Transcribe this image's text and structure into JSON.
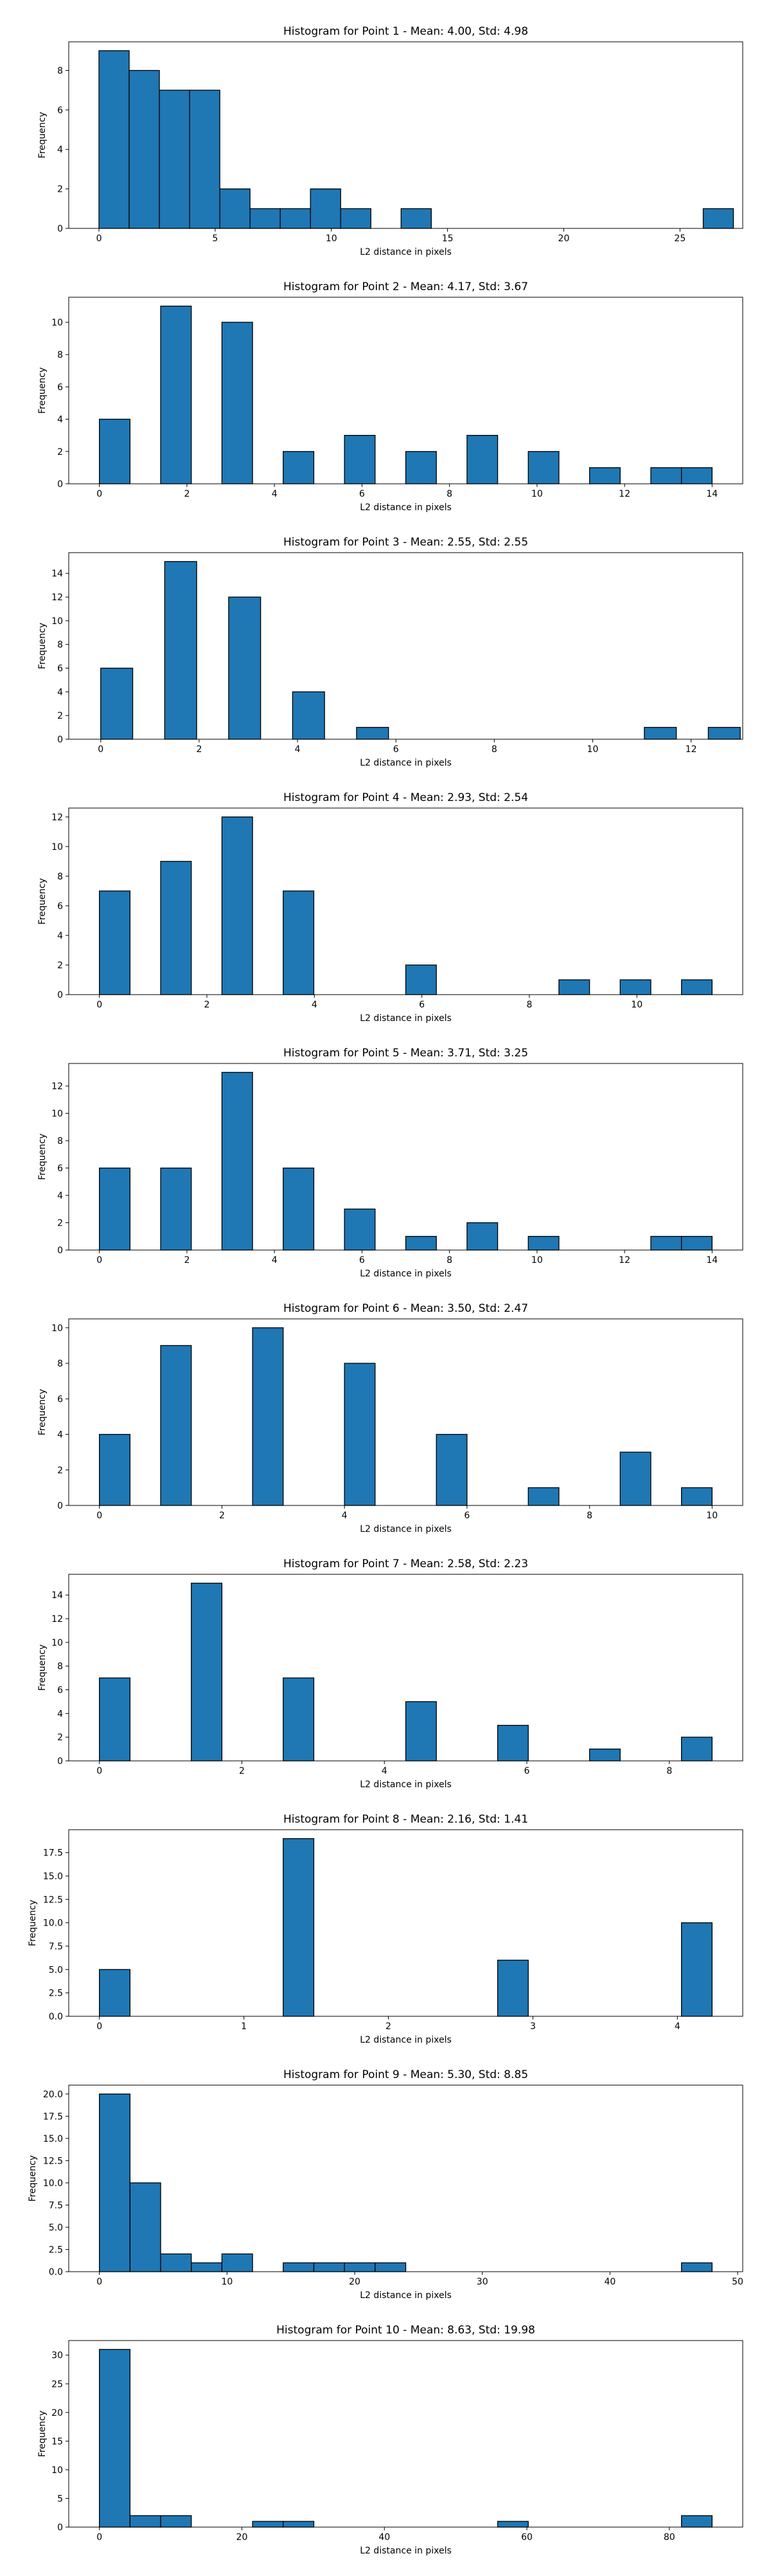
{
  "figure": {
    "ylabel": "Frequency",
    "xlabel": "L2 distance in pixels"
  },
  "chart_data": [
    {
      "type": "bar",
      "title": "Histogram for Point 1 - Mean: 4.00, Std: 4.98",
      "xlabel": "L2 distance in pixels",
      "ylabel": "Frequency",
      "xlim": [
        -1.3,
        27.7
      ],
      "ylim": [
        0,
        9.45
      ],
      "xticks": [
        0,
        5,
        10,
        15,
        20,
        25
      ],
      "yticks": [
        0,
        2,
        4,
        6,
        8
      ],
      "bin_edges": [
        0,
        1.3,
        2.6,
        3.9,
        5.2,
        6.5,
        7.8,
        9.1,
        10.4,
        11.7,
        13.0,
        14.3,
        15.6,
        16.9,
        18.2,
        19.5,
        20.8,
        22.1,
        23.4,
        24.7,
        26.0,
        27.3
      ],
      "values": [
        9,
        8,
        7,
        7,
        2,
        1,
        1,
        2,
        1,
        0,
        1,
        0,
        0,
        0,
        0,
        0,
        0,
        0,
        0,
        0,
        1
      ],
      "grid": false,
      "bar_color": "#1f77b4"
    },
    {
      "type": "bar",
      "title": "Histogram for Point 2 - Mean: 4.17, Std: 3.67",
      "xlabel": "L2 distance in pixels",
      "ylabel": "Frequency",
      "xlim": [
        -0.7,
        14.7
      ],
      "ylim": [
        0,
        11.55
      ],
      "xticks": [
        0,
        2,
        4,
        6,
        8,
        10,
        12,
        14
      ],
      "yticks": [
        0,
        2,
        4,
        6,
        8,
        10
      ],
      "bin_edges": [
        0,
        0.7,
        1.4,
        2.1,
        2.8,
        3.5,
        4.2,
        4.9,
        5.6,
        6.3,
        7.0,
        7.7,
        8.4,
        9.1,
        9.8,
        10.5,
        11.2,
        11.9,
        12.6,
        13.3,
        14.0
      ],
      "values": [
        4,
        0,
        11,
        0,
        10,
        0,
        2,
        0,
        3,
        0,
        2,
        0,
        3,
        0,
        2,
        0,
        1,
        0,
        1,
        1
      ],
      "grid": false,
      "bar_color": "#1f77b4"
    },
    {
      "type": "bar",
      "title": "Histogram for Point 3 - Mean: 2.55, Std: 2.55",
      "xlabel": "L2 distance in pixels",
      "ylabel": "Frequency",
      "xlim": [
        -0.65,
        13.05
      ],
      "ylim": [
        0,
        15.75
      ],
      "xticks": [
        0,
        2,
        4,
        6,
        8,
        10,
        12
      ],
      "yticks": [
        0,
        2,
        4,
        6,
        8,
        10,
        12,
        14
      ],
      "bin_edges": [
        0,
        0.65,
        1.3,
        1.95,
        2.6,
        3.25,
        3.9,
        4.55,
        5.2,
        5.85,
        6.5,
        7.15,
        7.8,
        8.45,
        9.1,
        9.75,
        10.4,
        11.05,
        11.7,
        12.35,
        13.0
      ],
      "values": [
        6,
        0,
        15,
        0,
        12,
        0,
        4,
        0,
        1,
        0,
        0,
        0,
        0,
        0,
        0,
        0,
        0,
        1,
        0,
        1
      ],
      "grid": false,
      "bar_color": "#1f77b4"
    },
    {
      "type": "bar",
      "title": "Histogram for Point 4 - Mean: 2.93, Std: 2.54",
      "xlabel": "L2 distance in pixels",
      "ylabel": "Frequency",
      "xlim": [
        -0.57,
        11.97
      ],
      "ylim": [
        0,
        12.6
      ],
      "xticks": [
        0,
        2,
        4,
        6,
        8,
        10
      ],
      "yticks": [
        0,
        2,
        4,
        6,
        8,
        10,
        12
      ],
      "bin_edges": [
        0,
        0.57,
        1.14,
        1.71,
        2.28,
        2.85,
        3.42,
        3.99,
        4.56,
        5.13,
        5.7,
        6.27,
        6.84,
        7.41,
        7.98,
        8.55,
        9.12,
        9.69,
        10.26,
        10.83,
        11.4
      ],
      "values": [
        7,
        0,
        9,
        0,
        12,
        0,
        7,
        0,
        0,
        0,
        2,
        0,
        0,
        0,
        0,
        1,
        0,
        1,
        0,
        1
      ],
      "grid": false,
      "bar_color": "#1f77b4"
    },
    {
      "type": "bar",
      "title": "Histogram for Point 5 - Mean: 3.71, Std: 3.25",
      "xlabel": "L2 distance in pixels",
      "ylabel": "Frequency",
      "xlim": [
        -0.7,
        14.7
      ],
      "ylim": [
        0,
        13.65
      ],
      "xticks": [
        0,
        2,
        4,
        6,
        8,
        10,
        12,
        14
      ],
      "yticks": [
        0,
        2,
        4,
        6,
        8,
        10,
        12
      ],
      "bin_edges": [
        0,
        0.7,
        1.4,
        2.1,
        2.8,
        3.5,
        4.2,
        4.9,
        5.6,
        6.3,
        7.0,
        7.7,
        8.4,
        9.1,
        9.8,
        10.5,
        11.2,
        11.9,
        12.6,
        13.3,
        14.0
      ],
      "values": [
        6,
        0,
        6,
        0,
        13,
        0,
        6,
        0,
        3,
        0,
        1,
        0,
        2,
        0,
        1,
        0,
        0,
        0,
        1,
        1
      ],
      "grid": false,
      "bar_color": "#1f77b4"
    },
    {
      "type": "bar",
      "title": "Histogram for Point 6 - Mean: 3.50, Std: 2.47",
      "xlabel": "L2 distance in pixels",
      "ylabel": "Frequency",
      "xlim": [
        -0.5,
        10.5
      ],
      "ylim": [
        0,
        10.5
      ],
      "xticks": [
        0,
        2,
        4,
        6,
        8,
        10
      ],
      "yticks": [
        0,
        2,
        4,
        6,
        8,
        10
      ],
      "bin_edges": [
        0,
        0.5,
        1.0,
        1.5,
        2.0,
        2.5,
        3.0,
        3.5,
        4.0,
        4.5,
        5.0,
        5.5,
        6.0,
        6.5,
        7.0,
        7.5,
        8.0,
        8.5,
        9.0,
        9.5,
        10.0
      ],
      "values": [
        4,
        0,
        9,
        0,
        0,
        10,
        0,
        0,
        8,
        0,
        0,
        4,
        0,
        0,
        1,
        0,
        0,
        3,
        0,
        1
      ],
      "grid": false,
      "bar_color": "#1f77b4"
    },
    {
      "type": "bar",
      "title": "Histogram for Point 7 - Mean: 2.58, Std: 2.23",
      "xlabel": "L2 distance in pixels",
      "ylabel": "Frequency",
      "xlim": [
        -0.43,
        9.03
      ],
      "ylim": [
        0,
        15.75
      ],
      "xticks": [
        0,
        2,
        4,
        6,
        8
      ],
      "yticks": [
        0,
        2,
        4,
        6,
        8,
        10,
        12,
        14
      ],
      "bin_edges": [
        0,
        0.43,
        0.86,
        1.29,
        1.72,
        2.15,
        2.58,
        3.01,
        3.44,
        3.87,
        4.3,
        4.73,
        5.16,
        5.59,
        6.02,
        6.45,
        6.88,
        7.31,
        7.74,
        8.17,
        8.6
      ],
      "values": [
        7,
        0,
        0,
        15,
        0,
        0,
        7,
        0,
        0,
        0,
        5,
        0,
        0,
        3,
        0,
        0,
        1,
        0,
        0,
        2
      ],
      "grid": false,
      "bar_color": "#1f77b4"
    },
    {
      "type": "bar",
      "title": "Histogram for Point 8 - Mean: 2.16, Std: 1.41",
      "xlabel": "L2 distance in pixels",
      "ylabel": "Frequency",
      "xlim": [
        -0.212,
        4.452
      ],
      "ylim": [
        0,
        19.95
      ],
      "xticks": [
        0,
        1,
        2,
        3,
        4
      ],
      "yticks": [
        0.0,
        2.5,
        5.0,
        7.5,
        10.0,
        12.5,
        15.0,
        17.5
      ],
      "ytick_labels": [
        "0.0",
        "2.5",
        "5.0",
        "7.5",
        "10.0",
        "12.5",
        "15.0",
        "17.5"
      ],
      "bin_edges": [
        0,
        0.212,
        0.424,
        0.636,
        0.848,
        1.06,
        1.272,
        1.484,
        1.696,
        1.908,
        2.12,
        2.332,
        2.544,
        2.756,
        2.968,
        3.18,
        3.392,
        3.604,
        3.816,
        4.028,
        4.24
      ],
      "values": [
        5,
        0,
        0,
        0,
        0,
        0,
        19,
        0,
        0,
        0,
        0,
        0,
        0,
        6,
        0,
        0,
        0,
        0,
        0,
        10
      ],
      "grid": false,
      "bar_color": "#1f77b4"
    },
    {
      "type": "bar",
      "title": "Histogram for Point 9 - Mean: 5.30, Std: 8.85",
      "xlabel": "L2 distance in pixels",
      "ylabel": "Frequency",
      "xlim": [
        -2.4,
        50.4
      ],
      "ylim": [
        0,
        21.0
      ],
      "xticks": [
        0,
        10,
        20,
        30,
        40,
        50
      ],
      "yticks": [
        0.0,
        2.5,
        5.0,
        7.5,
        10.0,
        12.5,
        15.0,
        17.5,
        20.0
      ],
      "ytick_labels": [
        "0.0",
        "2.5",
        "5.0",
        "7.5",
        "10.0",
        "12.5",
        "15.0",
        "17.5",
        "20.0"
      ],
      "bin_edges": [
        0,
        2.4,
        4.8,
        7.2,
        9.6,
        12.0,
        14.4,
        16.8,
        19.2,
        21.6,
        24.0,
        26.4,
        28.8,
        31.2,
        33.6,
        36.0,
        38.4,
        40.8,
        43.2,
        45.6,
        48.0
      ],
      "values": [
        20,
        10,
        2,
        1,
        2,
        0,
        1,
        1,
        1,
        1,
        0,
        0,
        0,
        0,
        0,
        0,
        0,
        0,
        0,
        1
      ],
      "grid": false,
      "bar_color": "#1f77b4"
    },
    {
      "type": "bar",
      "title": "Histogram for Point 10 - Mean: 8.63, Std: 19.98",
      "xlabel": "L2 distance in pixels",
      "ylabel": "Frequency",
      "xlim": [
        -4.3,
        90.3
      ],
      "ylim": [
        0,
        32.55
      ],
      "xticks": [
        0,
        20,
        40,
        60,
        80
      ],
      "yticks": [
        0,
        5,
        10,
        15,
        20,
        25,
        30
      ],
      "bin_edges": [
        0,
        4.3,
        8.6,
        12.9,
        17.2,
        21.5,
        25.8,
        30.1,
        34.4,
        38.7,
        43.0,
        47.3,
        51.6,
        55.9,
        60.2,
        64.5,
        68.8,
        73.1,
        77.4,
        81.7,
        86.0
      ],
      "values": [
        31,
        2,
        2,
        0,
        0,
        1,
        1,
        0,
        0,
        0,
        0,
        0,
        0,
        1,
        0,
        0,
        0,
        0,
        0,
        2
      ],
      "grid": false,
      "bar_color": "#1f77b4"
    }
  ]
}
